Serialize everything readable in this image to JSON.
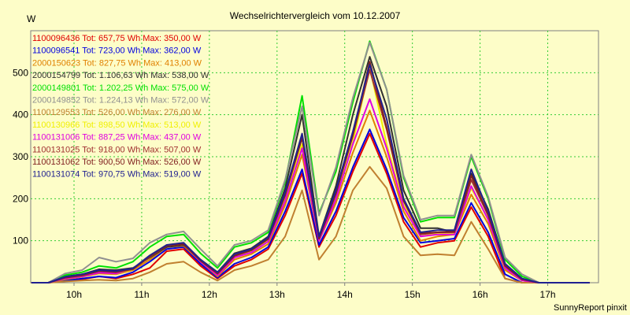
{
  "chart_data": {
    "type": "line",
    "title": "Wechselrichtervergleich vom 10.12.2007",
    "ylabel": "W",
    "xlabel": "",
    "footer": "SunnyReport pinxit",
    "grid": true,
    "legend_position": "top-left",
    "xlim": [
      9.36,
      17.75
    ],
    "ylim": [
      0,
      600
    ],
    "x_ticks": [
      10,
      11,
      12,
      13,
      14,
      15,
      16,
      17
    ],
    "x_tick_labels": [
      "10h",
      "11h",
      "12h",
      "13h",
      "14h",
      "15h",
      "16h",
      "17h"
    ],
    "y_ticks": [
      100,
      200,
      300,
      400,
      500
    ],
    "y_tick_labels": [
      "100",
      "200",
      "300",
      "400",
      "500"
    ],
    "x": [
      9.37,
      9.62,
      9.87,
      10.12,
      10.37,
      10.62,
      10.87,
      11.12,
      11.37,
      11.62,
      11.87,
      12.12,
      12.37,
      12.62,
      12.87,
      13.12,
      13.37,
      13.62,
      13.87,
      14.12,
      14.37,
      14.62,
      14.87,
      15.12,
      15.37,
      15.62,
      15.87,
      16.12,
      16.37,
      16.62,
      16.87,
      17.12,
      17.37,
      17.62
    ],
    "series": [
      {
        "name": "1100096436",
        "legend": "1100096436 Tot: 657,75 Wh Max: 350,00 W",
        "color": "#e00000",
        "values": [
          0,
          0,
          5,
          8,
          15,
          10,
          20,
          35,
          75,
          80,
          40,
          10,
          40,
          55,
          80,
          160,
          260,
          85,
          160,
          265,
          355,
          260,
          145,
          85,
          95,
          100,
          180,
          110,
          10,
          0,
          0,
          0,
          0,
          0
        ]
      },
      {
        "name": "1100096541",
        "legend": "1100096541 Tot: 723,00 Wh Max: 362,00 W",
        "color": "#0000e0",
        "values": [
          0,
          0,
          5,
          10,
          15,
          12,
          25,
          50,
          80,
          85,
          45,
          12,
          45,
          60,
          85,
          170,
          270,
          90,
          170,
          275,
          365,
          270,
          155,
          95,
          100,
          105,
          190,
          120,
          20,
          0,
          0,
          0,
          0,
          0
        ]
      },
      {
        "name": "2000150623",
        "legend": "2000150623 Tot: 827,75 Wh Max: 413,00 W",
        "color": "#e08000",
        "values": [
          0,
          0,
          8,
          14,
          22,
          20,
          30,
          55,
          85,
          88,
          50,
          15,
          55,
          68,
          92,
          185,
          305,
          100,
          190,
          310,
          410,
          300,
          170,
          100,
          110,
          115,
          210,
          140,
          30,
          5,
          0,
          0,
          0,
          0
        ]
      },
      {
        "name": "2000154799",
        "legend": "2000154799 Tot: 1.106,63 Wh Max: 538,00 W",
        "color": "#303030",
        "values": [
          0,
          0,
          15,
          20,
          32,
          30,
          35,
          60,
          85,
          90,
          55,
          25,
          70,
          82,
          110,
          225,
          400,
          110,
          230,
          400,
          538,
          420,
          220,
          130,
          130,
          120,
          260,
          175,
          45,
          10,
          0,
          0,
          0,
          0
        ]
      },
      {
        "name": "2000149801",
        "legend": "2000149801 Tot: 1.202,25 Wh Max: 575,00 W",
        "color": "#00e000",
        "values": [
          0,
          0,
          18,
          25,
          40,
          35,
          50,
          85,
          110,
          115,
          70,
          35,
          85,
          95,
          120,
          240,
          445,
          165,
          265,
          430,
          575,
          460,
          250,
          145,
          155,
          155,
          300,
          200,
          55,
          15,
          0,
          0,
          0,
          0
        ]
      },
      {
        "name": "2000149852",
        "legend": "2000149852 Tot: 1.224,13 Wh Max: 572,00 W",
        "color": "#909090",
        "values": [
          0,
          0,
          22,
          30,
          60,
          50,
          58,
          95,
          115,
          122,
          80,
          40,
          90,
          100,
          125,
          245,
          420,
          160,
          275,
          440,
          572,
          460,
          255,
          150,
          160,
          160,
          305,
          205,
          60,
          20,
          0,
          0,
          0,
          0
        ]
      },
      {
        "name": "1100129553",
        "legend": "1100129553 Tot: 526,00 Wh Max: 276,00 W",
        "color": "#c08030",
        "values": [
          0,
          0,
          3,
          5,
          7,
          5,
          10,
          25,
          45,
          50,
          25,
          5,
          30,
          40,
          55,
          110,
          220,
          55,
          110,
          220,
          276,
          225,
          110,
          65,
          68,
          65,
          145,
          80,
          10,
          0,
          0,
          0,
          0,
          0
        ]
      },
      {
        "name": "1100130966",
        "legend": "1100130966 Tot: 898,50 Wh Max: 513,00 W",
        "color": "#f0f000",
        "values": [
          0,
          0,
          10,
          15,
          25,
          22,
          32,
          62,
          88,
          92,
          52,
          20,
          62,
          75,
          100,
          200,
          330,
          105,
          205,
          335,
          513,
          330,
          185,
          110,
          118,
          118,
          225,
          152,
          35,
          5,
          0,
          0,
          0,
          0
        ]
      },
      {
        "name": "1100131006",
        "legend": "1100131006 Tot: 887,25 Wh Max: 437,00 W",
        "color": "#e000e0",
        "values": [
          0,
          0,
          10,
          15,
          24,
          22,
          34,
          62,
          88,
          92,
          50,
          18,
          60,
          72,
          98,
          195,
          320,
          100,
          200,
          330,
          437,
          320,
          180,
          110,
          115,
          115,
          230,
          150,
          35,
          5,
          0,
          0,
          0,
          0
        ]
      },
      {
        "name": "1100131025",
        "legend": "1100131025 Tot: 918,00 Wh Max: 507,00 W",
        "color": "#a03030",
        "values": [
          0,
          0,
          12,
          17,
          28,
          25,
          32,
          62,
          88,
          92,
          52,
          22,
          65,
          78,
          105,
          210,
          350,
          105,
          215,
          350,
          507,
          365,
          195,
          115,
          120,
          120,
          245,
          160,
          40,
          8,
          0,
          0,
          0,
          0
        ]
      },
      {
        "name": "1100131062",
        "legend": "1100131062 Tot: 900,50 Wh Max: 526,00 W",
        "color": "#802020",
        "values": [
          0,
          0,
          12,
          18,
          28,
          26,
          33,
          63,
          88,
          92,
          53,
          22,
          64,
          77,
          104,
          208,
          345,
          105,
          212,
          352,
          526,
          370,
          195,
          118,
          120,
          122,
          255,
          162,
          40,
          8,
          0,
          0,
          0,
          0
        ]
      },
      {
        "name": "1100131074",
        "legend": "1100131074 Tot: 970,75 Wh Max: 519,00 W",
        "color": "#202090",
        "values": [
          0,
          0,
          14,
          20,
          30,
          28,
          34,
          65,
          90,
          95,
          55,
          25,
          68,
          80,
          108,
          215,
          355,
          110,
          220,
          360,
          519,
          390,
          200,
          120,
          125,
          125,
          270,
          170,
          45,
          10,
          0,
          0,
          0,
          0
        ]
      }
    ]
  }
}
